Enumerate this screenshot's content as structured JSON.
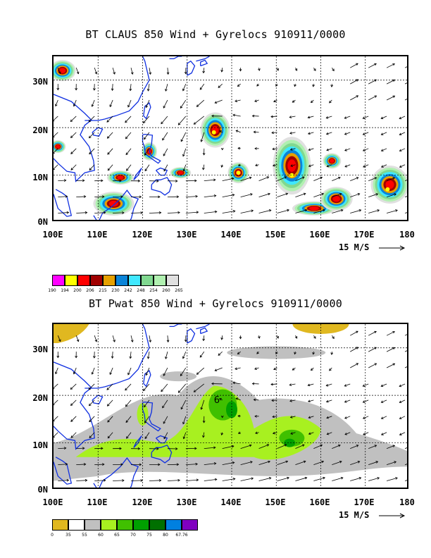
{
  "top": {
    "title": "BT CLAUS 850 Wind + Gyrelocs 910911/0000",
    "legend_colors": [
      "#ff00ff",
      "#ffff00",
      "#ff0000",
      "#a00000",
      "#e6a000",
      "#0a84d8",
      "#40e8ff",
      "#80d890",
      "#b0f0b0",
      "#e0e0e0"
    ],
    "legend_labels": [
      "190",
      "194",
      "200",
      "206",
      "215",
      "230",
      "242",
      "248",
      "254",
      "260",
      "265"
    ]
  },
  "bottom": {
    "title": "BT Pwat 850 Wind + Gyrelocs 910911/0000",
    "legend_colors": [
      "#e0b820",
      "#ffffff",
      "#c0c0c0",
      "#a8f020",
      "#40c000",
      "#00a000",
      "#007000",
      "#0080e0",
      "#8000c0"
    ],
    "legend_labels": [
      "0",
      "35",
      "55",
      "60",
      "65",
      "70",
      "75",
      "80",
      "67.76"
    ]
  },
  "axes": {
    "lat_labels": [
      "30N",
      "20N",
      "10N",
      "0N"
    ],
    "lon_labels": [
      "100E",
      "110E",
      "120E",
      "130E",
      "140E",
      "150E",
      "160E",
      "170E",
      "180"
    ]
  },
  "wind_scale": "15 M/S",
  "gyre_marker": "6"
}
